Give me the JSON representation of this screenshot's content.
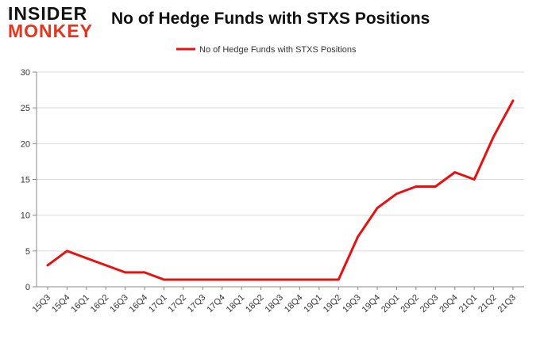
{
  "logo": {
    "line1": "INSIDER",
    "line2": "MONKEY"
  },
  "title": "No of Hedge Funds with STXS Positions",
  "chart_data": {
    "type": "line",
    "title": "No of Hedge Funds with STXS Positions",
    "xlabel": "",
    "ylabel": "",
    "categories": [
      "15Q3",
      "15Q4",
      "16Q1",
      "16Q2",
      "16Q3",
      "16Q4",
      "17Q1",
      "17Q2",
      "17Q3",
      "17Q4",
      "18Q1",
      "18Q2",
      "18Q3",
      "18Q4",
      "19Q1",
      "19Q2",
      "19Q3",
      "19Q4",
      "20Q1",
      "20Q2",
      "20Q3",
      "20Q4",
      "21Q1",
      "21Q2",
      "21Q3"
    ],
    "series": [
      {
        "name": "No of Hedge Funds with STXS Positions",
        "color": "#e8110f",
        "values": [
          3,
          5,
          4,
          3,
          2,
          2,
          1,
          1,
          1,
          1,
          1,
          1,
          1,
          1,
          1,
          1,
          7,
          11,
          13,
          14,
          14,
          16,
          15,
          21,
          26
        ]
      }
    ],
    "ylim": [
      0,
      30
    ],
    "yticks": [
      "0",
      "5",
      "10",
      "15",
      "20",
      "25",
      "30"
    ],
    "grid": "horizontal",
    "legend": "top-center"
  }
}
